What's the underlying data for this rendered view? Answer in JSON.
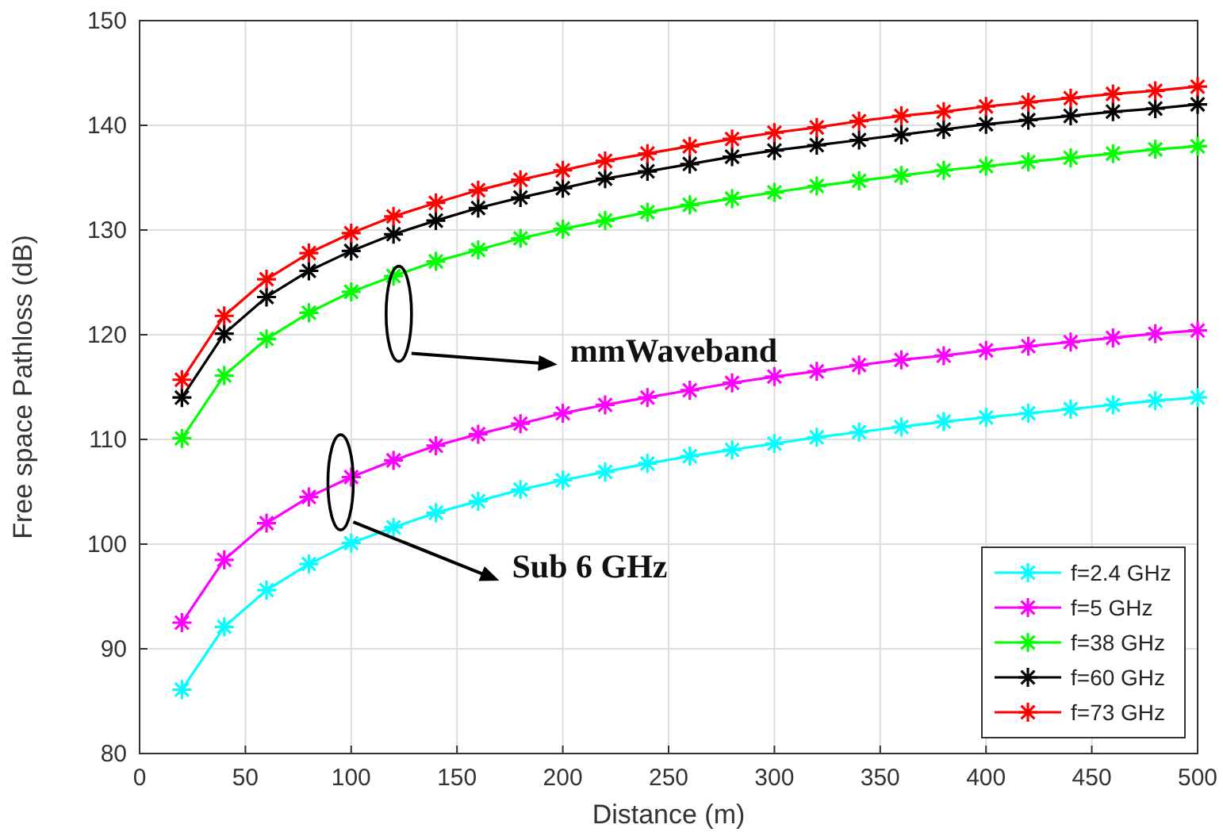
{
  "chart_data": {
    "type": "line",
    "xlabel": "Distance (m)",
    "ylabel": "Free space Pathloss (dB)",
    "x": [
      20,
      40,
      60,
      80,
      100,
      120,
      140,
      160,
      180,
      200,
      220,
      240,
      260,
      280,
      300,
      320,
      340,
      360,
      380,
      400,
      420,
      440,
      460,
      480,
      500
    ],
    "series": [
      {
        "name": "f=2.4 GHz",
        "color": "#00ffff",
        "values": [
          86.1,
          92.1,
          95.6,
          98.1,
          100.1,
          101.6,
          103.0,
          104.1,
          105.2,
          106.1,
          106.9,
          107.7,
          108.4,
          109.0,
          109.6,
          110.2,
          110.7,
          111.2,
          111.7,
          112.1,
          112.5,
          112.9,
          113.3,
          113.7,
          114.0
        ]
      },
      {
        "name": "f=5 GHz",
        "color": "#ff00ff",
        "values": [
          92.5,
          98.5,
          102.0,
          104.5,
          106.4,
          108.0,
          109.4,
          110.5,
          111.5,
          112.5,
          113.3,
          114.0,
          114.7,
          115.4,
          116.0,
          116.5,
          117.1,
          117.6,
          118.0,
          118.5,
          118.9,
          119.3,
          119.7,
          120.1,
          120.4
        ]
      },
      {
        "name": "f=38 GHz",
        "color": "#00ff00",
        "values": [
          110.1,
          116.1,
          119.6,
          122.1,
          124.1,
          125.6,
          127.0,
          128.1,
          129.2,
          130.1,
          130.9,
          131.7,
          132.4,
          133.0,
          133.6,
          134.2,
          134.7,
          135.2,
          135.7,
          136.1,
          136.5,
          136.9,
          137.3,
          137.7,
          138.0
        ]
      },
      {
        "name": "f=60 GHz",
        "color": "#000000",
        "values": [
          114.0,
          120.1,
          123.6,
          126.1,
          128.0,
          129.6,
          130.9,
          132.1,
          133.1,
          134.0,
          134.9,
          135.6,
          136.3,
          137.0,
          137.6,
          138.1,
          138.6,
          139.1,
          139.6,
          140.1,
          140.5,
          140.9,
          141.3,
          141.6,
          142.0
        ]
      },
      {
        "name": "f=73 GHz",
        "color": "#ff0000",
        "values": [
          115.7,
          121.8,
          125.3,
          127.8,
          129.7,
          131.3,
          132.6,
          133.8,
          134.8,
          135.7,
          136.6,
          137.3,
          138.0,
          138.7,
          139.3,
          139.8,
          140.4,
          140.9,
          141.3,
          141.8,
          142.2,
          142.6,
          143.0,
          143.3,
          143.7
        ]
      }
    ],
    "xlim": [
      0,
      500
    ],
    "xticks": [
      0,
      50,
      100,
      150,
      200,
      250,
      300,
      350,
      400,
      450,
      500
    ],
    "ylim": [
      80,
      150
    ],
    "yticks": [
      80,
      90,
      100,
      110,
      120,
      130,
      140,
      150
    ],
    "grid": true,
    "legend": "bottom right",
    "marker": "cross",
    "line_style": "solid",
    "annotations": [
      "mmWaveband",
      "Sub 6 GHz"
    ]
  }
}
